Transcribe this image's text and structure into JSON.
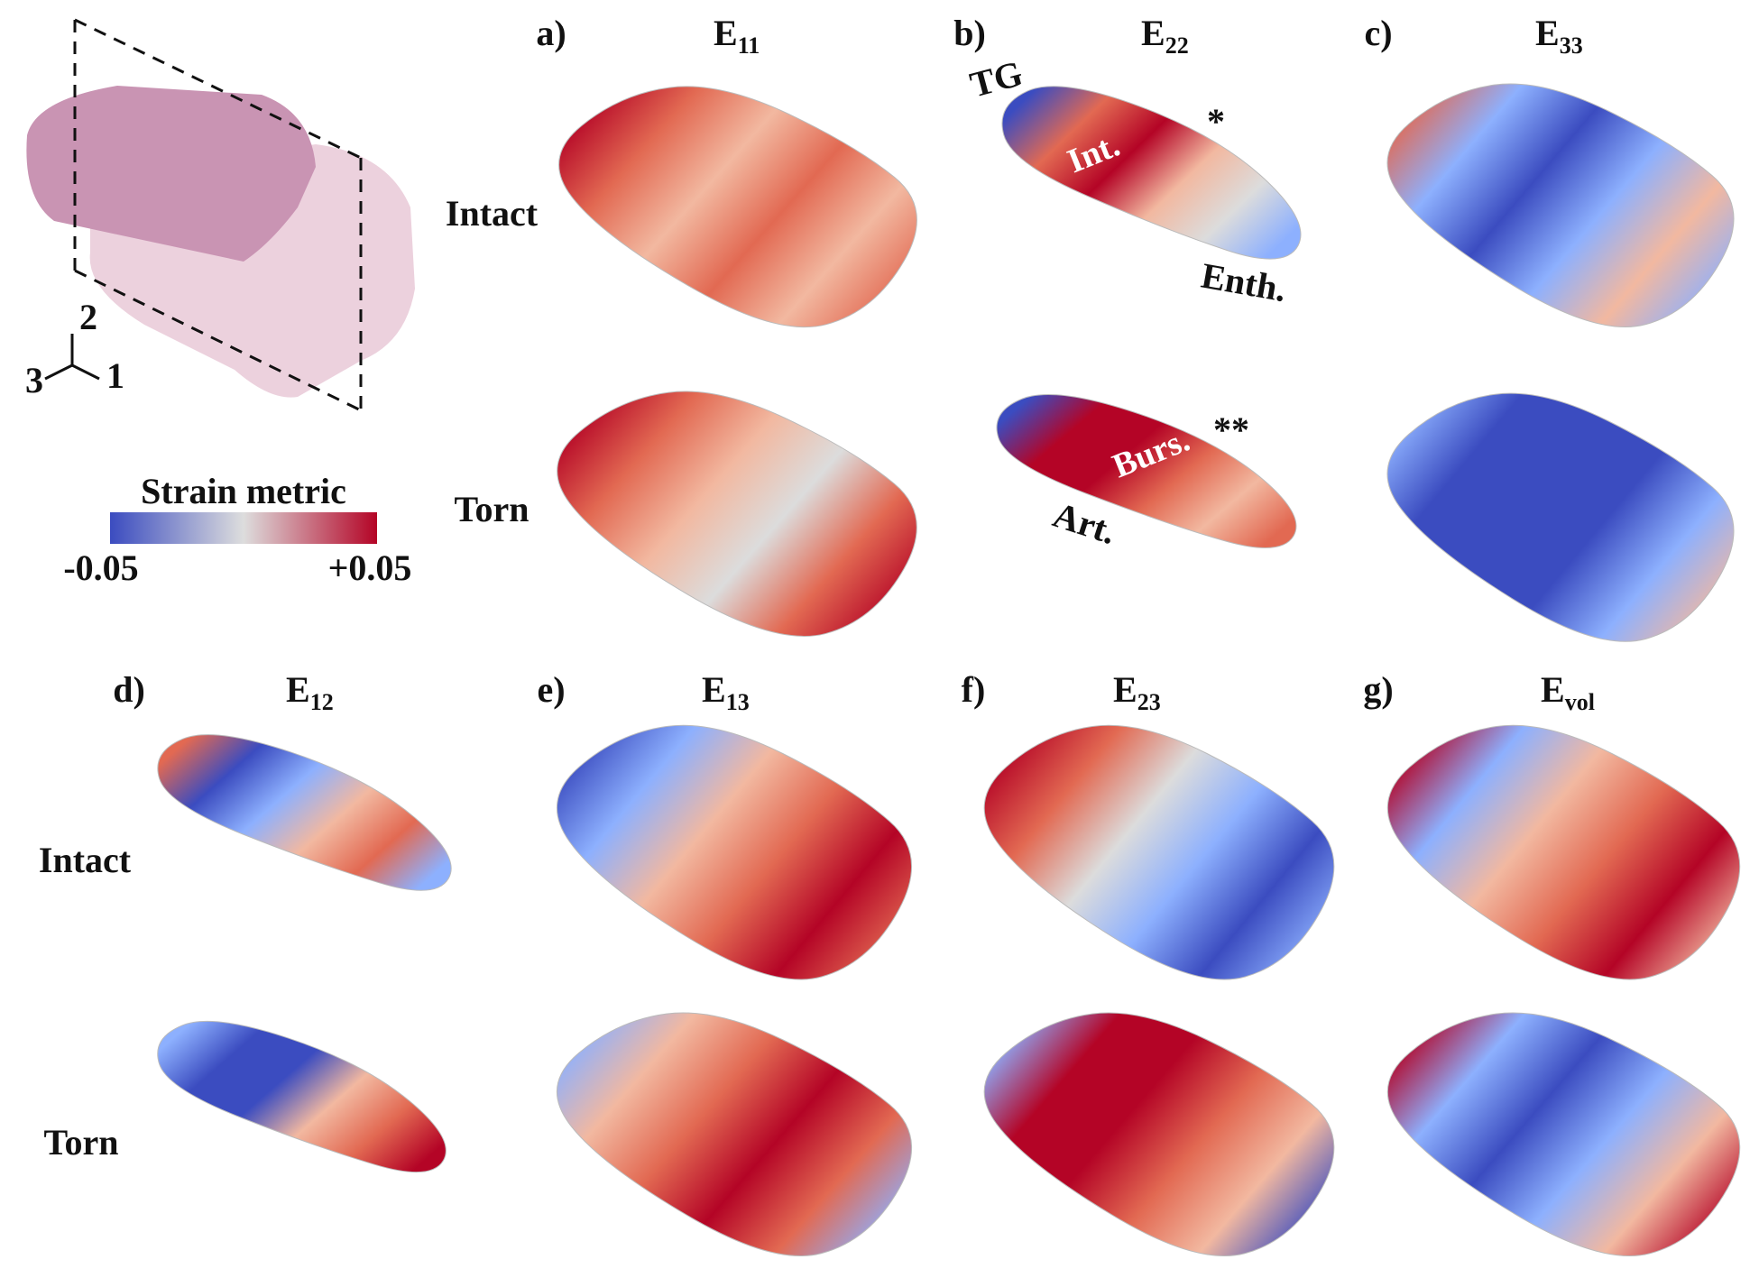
{
  "figure": {
    "inset": {
      "axes": [
        "1",
        "2",
        "3"
      ]
    },
    "legend": {
      "title": "Strain metric",
      "min_label": "-0.05",
      "max_label": "+0.05"
    },
    "top_rows": {
      "labels": [
        "Intact",
        "Torn"
      ]
    },
    "bottom_rows": {
      "labels": [
        "Intact",
        "Torn"
      ]
    },
    "panels": [
      {
        "label": "a)",
        "title": {
          "base": "E",
          "sub": "11"
        }
      },
      {
        "label": "b)",
        "title": {
          "base": "E",
          "sub": "22"
        }
      },
      {
        "label": "c)",
        "title": {
          "base": "E",
          "sub": "33"
        }
      },
      {
        "label": "d)",
        "title": {
          "base": "E",
          "sub": "12"
        }
      },
      {
        "label": "e)",
        "title": {
          "base": "E",
          "sub": "13"
        }
      },
      {
        "label": "f)",
        "title": {
          "base": "E",
          "sub": "23"
        }
      },
      {
        "label": "g)",
        "title": {
          "base": "E",
          "sub": "vol"
        }
      }
    ],
    "annotations": {
      "tg": "TG",
      "int": "Int.",
      "star": "*",
      "enth": "Enth.",
      "burs": "Burs.",
      "double_star": "**",
      "art": "Art."
    }
  }
}
